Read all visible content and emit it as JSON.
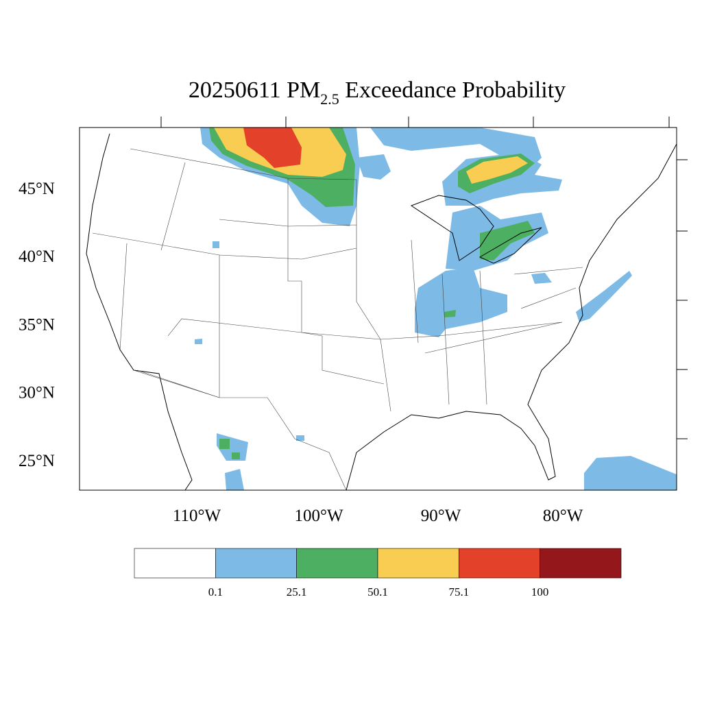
{
  "title": {
    "prefix": "20250611 PM",
    "subscript": "2.5",
    "suffix": " Exceedance Probability"
  },
  "lat_labels": [
    "45°N",
    "40°N",
    "35°N",
    "30°N",
    "25°N"
  ],
  "lon_labels": [
    "110°W",
    "100°W",
    "90°W",
    "80°W"
  ],
  "colorbar": {
    "colors": [
      "#ffffff",
      "#7dbbe6",
      "#4caf62",
      "#f9cd52",
      "#e3412a",
      "#94171b"
    ],
    "labels": [
      "0.1",
      "25.1",
      "50.1",
      "75.1",
      "100"
    ]
  }
}
